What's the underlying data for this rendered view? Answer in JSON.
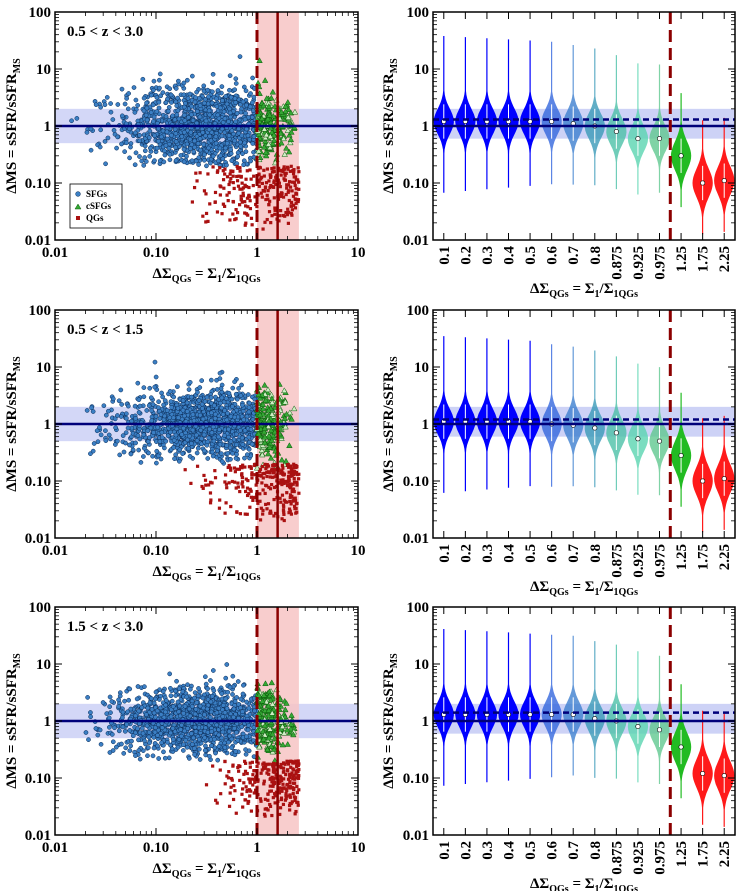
{
  "chart_data": [
    {
      "type": "scatter",
      "panel": "left",
      "z_label": "0.5 < z < 3.0",
      "xscale": "log",
      "yscale": "log",
      "xlim": [
        0.01,
        10
      ],
      "ylim": [
        0.01,
        100
      ],
      "xticks": [
        "0.01",
        "0.10",
        "1",
        "10"
      ],
      "yticks": [
        "0.01",
        "0.10",
        "1",
        "10",
        "100"
      ],
      "xlabel": {
        "main": "ΔΣ",
        "sub": "QGs",
        "eq": " = Σ",
        "sub2": "1",
        "div": "/Σ",
        "sub3": "1QGs"
      },
      "ylabel": {
        "main": "ΔMS = sSFR/sSFR",
        "sub": "MS"
      },
      "legend": [
        "SFGs",
        "cSFGs",
        "QGs"
      ],
      "ms_line": 1.0,
      "ms_band": [
        0.5,
        2.0
      ],
      "threshold_dashed": 1.0,
      "threshold_solid": 1.6,
      "threshold_band": [
        1.0,
        2.6
      ],
      "series": [
        {
          "name": "SFGs",
          "x_range": [
            0.012,
            1.0
          ],
          "x_peak": 0.3,
          "y_center": 1.0,
          "y_spread_dex": 0.38,
          "y_max": 60,
          "color": "#3b7fc4"
        },
        {
          "name": "cSFGs",
          "x_range": [
            1.0,
            2.6
          ],
          "y_range": [
            0.2,
            30
          ],
          "color": "#35a835"
        },
        {
          "name": "QGs",
          "x_range": [
            0.15,
            2.6
          ],
          "y_range": [
            0.015,
            0.2
          ],
          "color": "#aa1111"
        }
      ]
    },
    {
      "type": "violin",
      "panel": "right",
      "xscale": "categorical",
      "yscale": "log",
      "ylim": [
        0.01,
        100
      ],
      "yticks": [
        "0.01",
        "0.10",
        "1",
        "10",
        "100"
      ],
      "categories": [
        "0.1",
        "0.2",
        "0.3",
        "0.4",
        "0.5",
        "0.6",
        "0.7",
        "0.8",
        "0.875",
        "0.925",
        "0.975",
        "1.25",
        "1.75",
        "2.25"
      ],
      "medians": [
        1.2,
        1.2,
        1.2,
        1.2,
        1.2,
        1.2,
        1.1,
        1.0,
        0.8,
        0.6,
        0.6,
        0.3,
        0.1,
        0.11
      ],
      "colors": [
        "#0000ff",
        "#0000ff",
        "#0000ff",
        "#0000ff",
        "#0000ff",
        "#3366dd",
        "#3d7fcf",
        "#3a9ab8",
        "#4cc0a8",
        "#5ad4b0",
        "#60c890",
        "#22bb22",
        "#ff1a1a",
        "#ff1a1a"
      ],
      "xlabel": {
        "main": "ΔΣ",
        "sub": "QGs",
        "eq": " = Σ",
        "sub2": "1",
        "div": "/Σ",
        "sub3": "1QGs"
      },
      "ylabel": {
        "main": "ΔMS = sSFR/sSFR",
        "sub": "MS"
      },
      "ms_line": 1.0,
      "ms_dashed": 1.3,
      "ms_band": [
        0.6,
        2.0
      ]
    },
    {
      "type": "scatter",
      "panel": "left",
      "z_label": "0.5 < z < 1.5",
      "xscale": "log",
      "yscale": "log",
      "xlim": [
        0.01,
        10
      ],
      "ylim": [
        0.01,
        100
      ],
      "xticks": [
        "0.01",
        "0.10",
        "1",
        "10"
      ],
      "yticks": [
        "0.01",
        "0.10",
        "1",
        "10",
        "100"
      ],
      "xlabel": {
        "main": "ΔΣ",
        "sub": "QGs",
        "eq": " = Σ",
        "sub2": "1",
        "div": "/Σ",
        "sub3": "1QGs"
      },
      "ylabel": {
        "main": "ΔMS = sSFR/sSFR",
        "sub": "MS"
      },
      "ms_line": 1.0,
      "ms_band": [
        0.5,
        2.0
      ],
      "threshold_dashed": 1.0,
      "threshold_solid": 1.6,
      "threshold_band": [
        1.0,
        2.6
      ],
      "series": [
        {
          "name": "SFGs",
          "x_range": [
            0.02,
            1.0
          ],
          "x_peak": 0.3,
          "y_center": 1.0,
          "y_spread_dex": 0.3,
          "y_max": 30,
          "color": "#3b7fc4"
        },
        {
          "name": "cSFGs",
          "x_range": [
            1.0,
            2.6
          ],
          "y_range": [
            0.15,
            20
          ],
          "color": "#35a835"
        },
        {
          "name": "QGs",
          "x_range": [
            0.15,
            2.6
          ],
          "y_range": [
            0.02,
            0.2
          ],
          "color": "#aa1111"
        }
      ]
    },
    {
      "type": "violin",
      "panel": "right",
      "xscale": "categorical",
      "yscale": "log",
      "ylim": [
        0.01,
        100
      ],
      "yticks": [
        "0.01",
        "0.10",
        "1",
        "10",
        "100"
      ],
      "categories": [
        "0.1",
        "0.2",
        "0.3",
        "0.4",
        "0.5",
        "0.6",
        "0.7",
        "0.8",
        "0.875",
        "0.925",
        "0.975",
        "1.25",
        "1.75",
        "2.25"
      ],
      "medians": [
        1.1,
        1.1,
        1.1,
        1.1,
        1.1,
        1.0,
        0.95,
        0.85,
        0.7,
        0.55,
        0.5,
        0.28,
        0.1,
        0.11
      ],
      "colors": [
        "#0000ff",
        "#0000ff",
        "#0000ff",
        "#0000ff",
        "#0000ff",
        "#3366dd",
        "#3d7fcf",
        "#3a9ab8",
        "#4cc0a8",
        "#5ad4b0",
        "#60c890",
        "#22bb22",
        "#ff1a1a",
        "#ff1a1a"
      ],
      "xlabel": {
        "main": "ΔΣ",
        "sub": "QGs",
        "eq": " = Σ",
        "sub2": "1",
        "div": "/Σ",
        "sub3": "1QGs"
      },
      "ylabel": {
        "main": "ΔMS = sSFR/sSFR",
        "sub": "MS"
      },
      "ms_line": 1.0,
      "ms_dashed": 1.2,
      "ms_band": [
        0.6,
        2.0
      ]
    },
    {
      "type": "scatter",
      "panel": "left",
      "z_label": "1.5 < z < 3.0",
      "xscale": "log",
      "yscale": "log",
      "xlim": [
        0.01,
        10
      ],
      "ylim": [
        0.01,
        100
      ],
      "xticks": [
        "0.01",
        "0.10",
        "1",
        "10"
      ],
      "yticks": [
        "0.01",
        "0.10",
        "1",
        "10",
        "100"
      ],
      "xlabel": {
        "main": "ΔΣ",
        "sub": "QGs",
        "eq": " = Σ",
        "sub2": "1",
        "div": "/Σ",
        "sub3": "1QGs"
      },
      "ylabel": {
        "main": "ΔMS = sSFR/sSFR",
        "sub": "MS"
      },
      "ms_line": 1.0,
      "ms_band": [
        0.5,
        2.0
      ],
      "threshold_dashed": 1.0,
      "threshold_solid": 1.6,
      "threshold_band": [
        1.0,
        2.6
      ],
      "series": [
        {
          "name": "SFGs",
          "x_range": [
            0.02,
            1.0
          ],
          "x_peak": 0.25,
          "y_center": 1.0,
          "y_spread_dex": 0.3,
          "y_max": 20,
          "color": "#3b7fc4"
        },
        {
          "name": "cSFGs",
          "x_range": [
            1.0,
            2.6
          ],
          "y_range": [
            0.2,
            10
          ],
          "color": "#35a835"
        },
        {
          "name": "QGs",
          "x_range": [
            0.3,
            2.6
          ],
          "y_range": [
            0.02,
            0.2
          ],
          "color": "#aa1111"
        }
      ]
    },
    {
      "type": "violin",
      "panel": "right",
      "xscale": "categorical",
      "yscale": "log",
      "ylim": [
        0.01,
        100
      ],
      "yticks": [
        "0.01",
        "0.10",
        "1",
        "10",
        "100"
      ],
      "categories": [
        "0.1",
        "0.2",
        "0.3",
        "0.4",
        "0.5",
        "0.6",
        "0.7",
        "0.8",
        "0.875",
        "0.925",
        "0.975",
        "1.25",
        "1.75",
        "2.25"
      ],
      "medians": [
        1.3,
        1.3,
        1.3,
        1.3,
        1.3,
        1.3,
        1.3,
        1.1,
        1.0,
        0.8,
        0.7,
        0.35,
        0.12,
        0.11
      ],
      "colors": [
        "#0000ff",
        "#0000ff",
        "#0000ff",
        "#0000ff",
        "#0000ff",
        "#3366dd",
        "#3d7fcf",
        "#3a9ab8",
        "#4cc0a8",
        "#5ad4b0",
        "#60c890",
        "#22bb22",
        "#ff1a1a",
        "#ff1a1a"
      ],
      "xlabel": {
        "main": "ΔΣ",
        "sub": "QGs",
        "eq": " = Σ",
        "sub2": "1",
        "div": "/Σ",
        "sub3": "1QGs"
      },
      "ylabel": {
        "main": "ΔMS = sSFR/sSFR",
        "sub": "MS"
      },
      "ms_line": 1.0,
      "ms_dashed": 1.4,
      "ms_band": [
        0.6,
        2.0
      ]
    }
  ]
}
